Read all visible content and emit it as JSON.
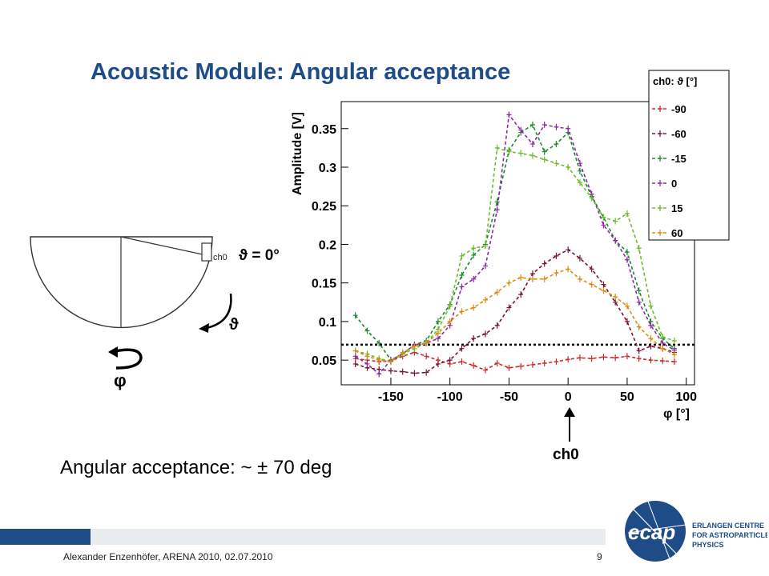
{
  "slide": {
    "title": "Acoustic Module: Angular acceptance",
    "acceptance_text": "Angular acceptance:  ~ ± 70 deg",
    "footer": "Alexander Enzenhöfer, ARENA 2010, 02.07.2010",
    "page_number": "9",
    "ch0_arrow_label": "ch0",
    "accent_color": "#1e4c87"
  },
  "sketch": {
    "ch0_label": "ch0",
    "theta_eq_label": "ϑ = 0°",
    "theta_label": "ϑ",
    "phi_label": "φ"
  },
  "logo": {
    "text": "ecap",
    "lines": [
      "ERLANGEN CENTRE",
      "FOR ASTROPARTICLE",
      "PHYSICS"
    ]
  },
  "chart_data": {
    "type": "line",
    "xlabel": "φ [°]",
    "ylabel": "Amplitude [V]",
    "xlim": [
      -192,
      107
    ],
    "ylim": [
      0.018,
      0.385
    ],
    "xticks": [
      -150,
      -100,
      -50,
      0,
      50,
      100
    ],
    "yticks": [
      0.05,
      0.1,
      0.15,
      0.2,
      0.25,
      0.3,
      0.35
    ],
    "legend_title": "ch0:  ϑ [°]",
    "legend_position": "top-right",
    "threshold": 0.07,
    "x": [
      -180,
      -170,
      -160,
      -150,
      -140,
      -130,
      -120,
      -110,
      -100,
      -90,
      -80,
      -70,
      -60,
      -50,
      -40,
      -30,
      -20,
      -10,
      0,
      10,
      20,
      30,
      40,
      50,
      60,
      70,
      80,
      90
    ],
    "series": [
      {
        "name": "-90",
        "color": "#cc2a2a",
        "values": [
          0.052,
          0.05,
          0.048,
          0.049,
          0.055,
          0.06,
          0.055,
          0.05,
          0.045,
          0.048,
          0.043,
          0.037,
          0.046,
          0.04,
          0.042,
          0.044,
          0.046,
          0.048,
          0.051,
          0.053,
          0.052,
          0.054,
          0.053,
          0.055,
          0.052,
          0.05,
          0.049,
          0.048
        ]
      },
      {
        "name": "-60",
        "color": "#7a1530",
        "values": [
          0.045,
          0.04,
          0.038,
          0.036,
          0.035,
          0.033,
          0.034,
          0.045,
          0.05,
          0.065,
          0.078,
          0.084,
          0.095,
          0.118,
          0.135,
          0.162,
          0.175,
          0.185,
          0.193,
          0.182,
          0.168,
          0.148,
          0.125,
          0.1,
          0.062,
          0.068,
          0.065,
          0.06
        ]
      },
      {
        "name": "-15",
        "color": "#1a8a2a",
        "values": [
          0.108,
          0.088,
          0.072,
          0.05,
          0.058,
          0.07,
          0.075,
          0.1,
          0.122,
          0.16,
          0.186,
          0.2,
          0.255,
          0.322,
          0.345,
          0.355,
          0.32,
          0.33,
          0.345,
          0.295,
          0.262,
          0.235,
          0.205,
          0.19,
          0.14,
          0.1,
          0.078,
          0.065
        ]
      },
      {
        "name": "0",
        "color": "#8a2aa8",
        "values": [
          0.055,
          0.045,
          0.032,
          0.05,
          0.058,
          0.07,
          0.072,
          0.078,
          0.095,
          0.145,
          0.155,
          0.172,
          0.245,
          0.368,
          0.348,
          0.33,
          0.355,
          0.352,
          0.35,
          0.305,
          0.265,
          0.225,
          0.205,
          0.18,
          0.125,
          0.095,
          0.072,
          0.063
        ]
      },
      {
        "name": "15",
        "color": "#6cbc2a",
        "values": [
          0.062,
          0.058,
          0.052,
          0.048,
          0.058,
          0.065,
          0.072,
          0.09,
          0.12,
          0.185,
          0.195,
          0.198,
          0.325,
          0.32,
          0.318,
          0.315,
          0.31,
          0.305,
          0.3,
          0.28,
          0.26,
          0.235,
          0.23,
          0.24,
          0.195,
          0.12,
          0.08,
          0.075
        ]
      },
      {
        "name": "60",
        "color": "#e08a10",
        "values": [
          0.062,
          0.055,
          0.05,
          0.048,
          0.06,
          0.068,
          0.072,
          0.085,
          0.1,
          0.113,
          0.118,
          0.128,
          0.138,
          0.15,
          0.157,
          0.155,
          0.155,
          0.163,
          0.168,
          0.155,
          0.148,
          0.14,
          0.132,
          0.12,
          0.093,
          0.078,
          0.065,
          0.057
        ]
      }
    ]
  }
}
